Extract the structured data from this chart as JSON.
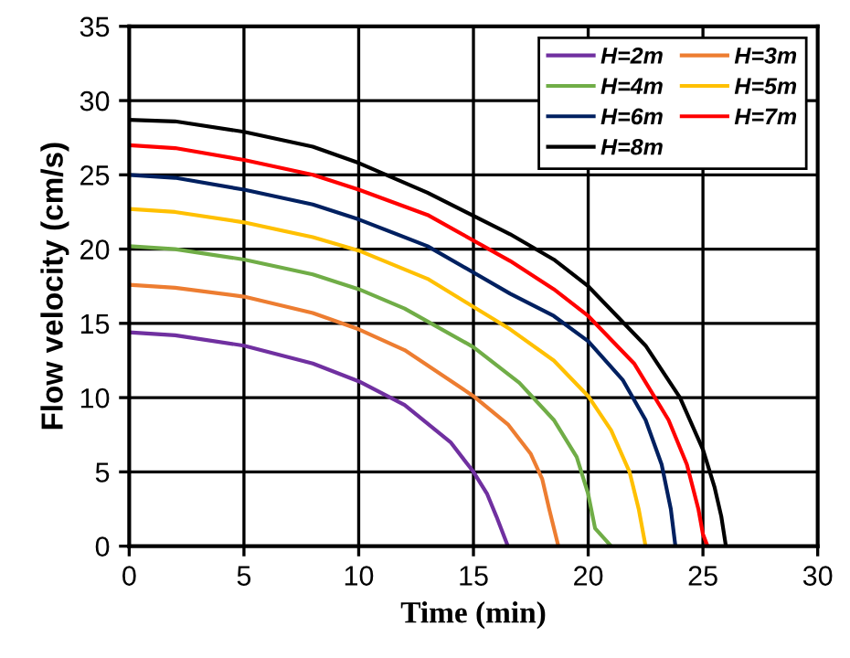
{
  "chart_data": {
    "type": "line",
    "xlabel": "Time (min)",
    "ylabel": "Flow velocity (cm/s)",
    "xlim": [
      0,
      30
    ],
    "ylim": [
      0,
      35
    ],
    "xticks": [
      0,
      5,
      10,
      15,
      20,
      25,
      30
    ],
    "yticks": [
      0,
      5,
      10,
      15,
      20,
      25,
      30,
      35
    ],
    "grid": true,
    "legend": "top right",
    "marker": "none",
    "line_style": "solid",
    "series": [
      {
        "name": "H=2m",
        "color": "#7030a0",
        "x": [
          0,
          2,
          5,
          8,
          10,
          12,
          14,
          15,
          15.6,
          16,
          16.5
        ],
        "values": [
          14.4,
          14.2,
          13.5,
          12.3,
          11.1,
          9.5,
          7.0,
          5.0,
          3.5,
          2.0,
          0
        ]
      },
      {
        "name": "H=3m",
        "color": "#ed7d31",
        "x": [
          0,
          2,
          5,
          8,
          10,
          12,
          15,
          16.5,
          17.5,
          18,
          18.3,
          18.7
        ],
        "values": [
          17.6,
          17.4,
          16.8,
          15.7,
          14.6,
          13.2,
          10.1,
          8.2,
          6.2,
          4.5,
          2.5,
          0
        ]
      },
      {
        "name": "H=4m",
        "color": "#70ad47",
        "x": [
          0,
          2,
          5,
          8,
          10,
          12,
          15,
          17,
          18.5,
          19.5,
          20,
          20.3,
          21
        ],
        "values": [
          20.2,
          20.0,
          19.3,
          18.3,
          17.3,
          16.0,
          13.4,
          11.0,
          8.5,
          6.0,
          3.5,
          1.2,
          0
        ]
      },
      {
        "name": "H=5m",
        "color": "#ffc000",
        "x": [
          0,
          2,
          5,
          8,
          10,
          13,
          16.6,
          18.5,
          20,
          21,
          21.8,
          22.2,
          22.5
        ],
        "values": [
          22.7,
          22.5,
          21.8,
          20.8,
          19.9,
          18.0,
          14.6,
          12.5,
          10.1,
          7.8,
          5.0,
          2.5,
          0
        ]
      },
      {
        "name": "H=6m",
        "color": "#002060",
        "x": [
          0,
          2,
          5,
          8,
          10,
          13,
          16.6,
          18.5,
          20,
          21.5,
          22.5,
          23.2,
          23.6,
          23.8
        ],
        "values": [
          25.0,
          24.8,
          24.0,
          23.0,
          22.0,
          20.2,
          17.0,
          15.5,
          13.8,
          11.2,
          8.5,
          5.5,
          2.5,
          0
        ]
      },
      {
        "name": "H=7m",
        "color": "#ff0000",
        "x": [
          0,
          2,
          5,
          8,
          10,
          13,
          16.6,
          18.5,
          20,
          22,
          23.5,
          24.3,
          24.8,
          25.0,
          25.2
        ],
        "values": [
          27.0,
          26.8,
          26.0,
          25.0,
          24.0,
          22.3,
          19.2,
          17.3,
          15.5,
          12.3,
          8.5,
          5.5,
          2.5,
          0.8,
          0
        ]
      },
      {
        "name": "H=8m",
        "color": "#000000",
        "x": [
          0,
          2,
          5,
          8,
          10,
          13,
          16.6,
          18.5,
          20,
          22.5,
          24,
          25,
          25.5,
          25.8,
          26.0
        ],
        "values": [
          28.7,
          28.6,
          27.9,
          26.9,
          25.8,
          23.8,
          21.0,
          19.3,
          17.5,
          13.5,
          10.0,
          6.5,
          4.0,
          2.0,
          0
        ]
      }
    ]
  }
}
